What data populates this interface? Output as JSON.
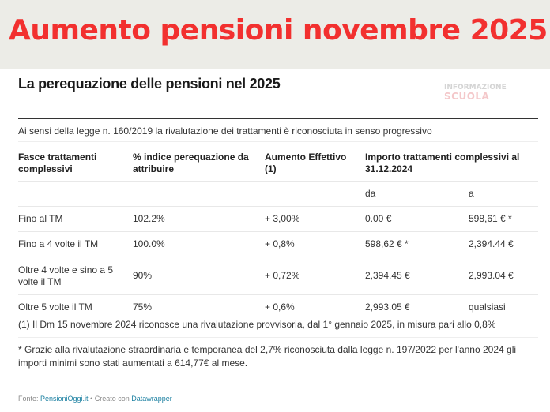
{
  "banner": {
    "title": "Aumento pensioni novembre 2025",
    "title_color": "#f2302f"
  },
  "chart": {
    "title": "La perequazione delle pensioni nel 2025",
    "logo": {
      "line1": "INFORMAZIONE",
      "line2": "SCUOLA"
    },
    "intro": "Ai sensi della legge n. 160/2019 la rivalutazione dei trattamenti è riconosciuta in senso progressivo",
    "table": {
      "headers": [
        "Fasce trattamenti complessivi",
        "% indice perequazione da attribuire",
        "Aumento Effettivo (1)",
        "Importo trattamenti complessivi al 31.12.2024"
      ],
      "subheaders": {
        "from": "da",
        "to": "a"
      },
      "rows": [
        {
          "band": "Fino al TM",
          "index": "102.2%",
          "increase": "+ 3,00%",
          "from": "0.00 €",
          "to": "598,61 € *"
        },
        {
          "band": "Fino a 4 volte il TM",
          "index": "100.0%",
          "increase": "+ 0,8%",
          "from": "598,62 € *",
          "to": "2,394.44 €"
        },
        {
          "band": "Oltre 4 volte e sino a 5 volte il TM",
          "index": "90%",
          "increase": "+ 0,72%",
          "from": "2,394.45 €",
          "to": "2,993.04 €"
        },
        {
          "band": "Oltre 5 volte il TM",
          "index": "75%",
          "increase": "+ 0,6%",
          "from": "2,993.05 €",
          "to": "qualsiasi"
        }
      ]
    },
    "notes": [
      "(1) Il Dm 15 novembre 2024 riconosce una rivalutazione provvisoria, dal 1° gennaio 2025, in misura pari allo 0,8%",
      "* Grazie alla rivalutazione straordinaria e temporanea del 2,7% riconosciuta dalla legge n. 197/2022 per l'anno 2024 gli importi minimi sono stati aumentati a 614,77€ al mese."
    ],
    "footer": {
      "source_label": "Fonte: ",
      "source_link": "PensioniOggi.it",
      "separator": " • Creato con ",
      "tool_link": "Datawrapper"
    }
  }
}
